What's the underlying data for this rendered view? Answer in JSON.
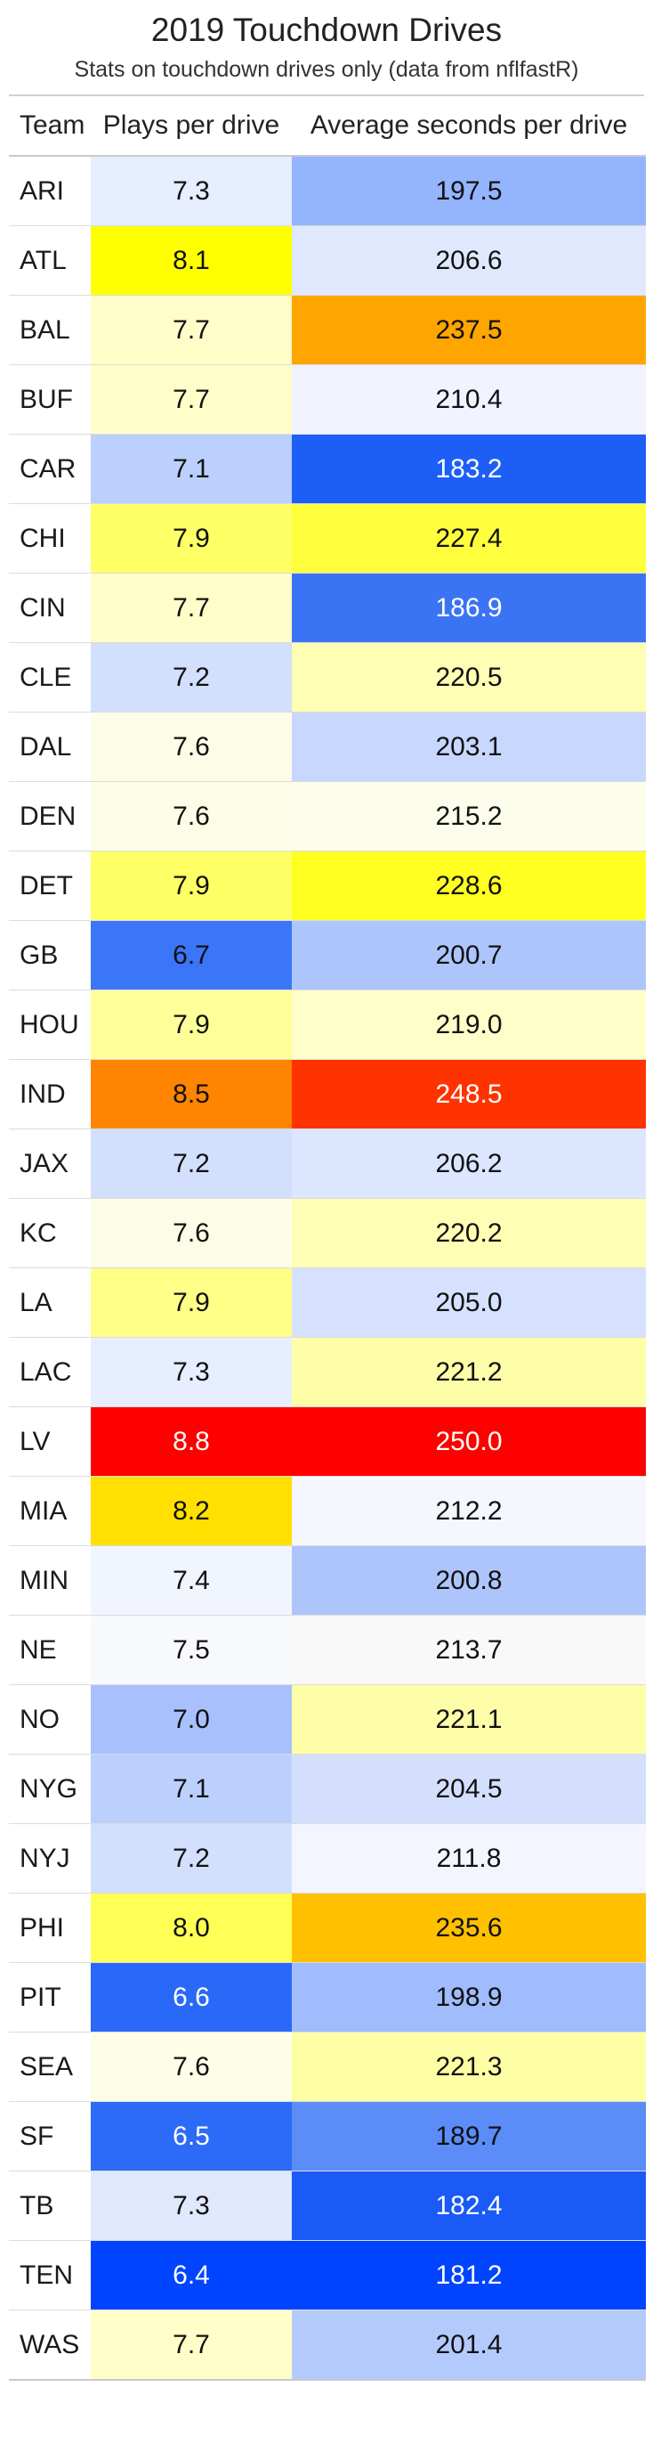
{
  "title": "2019 Touchdown Drives",
  "subtitle": "Stats on touchdown drives only (data from nflfastR)",
  "chart_data": {
    "type": "table",
    "columns": [
      "Team",
      "Plays per drive",
      "Average seconds per drive"
    ],
    "rows": [
      {
        "team": "ARI",
        "plays": "7.3",
        "secs": "197.5",
        "plays_bg": "#e6eeff",
        "plays_fg": "#111111",
        "secs_bg": "#94b4fd",
        "secs_fg": "#111111"
      },
      {
        "team": "ATL",
        "plays": "8.1",
        "secs": "206.6",
        "plays_bg": "#ffff00",
        "plays_fg": "#111111",
        "secs_bg": "#e0e8fe",
        "secs_fg": "#111111"
      },
      {
        "team": "BAL",
        "plays": "7.7",
        "secs": "237.5",
        "plays_bg": "#fffec8",
        "plays_fg": "#111111",
        "secs_bg": "#ffa500",
        "secs_fg": "#111111"
      },
      {
        "team": "BUF",
        "plays": "7.7",
        "secs": "210.4",
        "plays_bg": "#fffec8",
        "plays_fg": "#111111",
        "secs_bg": "#f1f4fe",
        "secs_fg": "#111111"
      },
      {
        "team": "CAR",
        "plays": "7.1",
        "secs": "183.2",
        "plays_bg": "#bcd0fd",
        "plays_fg": "#111111",
        "secs_bg": "#1d5ff6",
        "secs_fg": "#ffffff"
      },
      {
        "team": "CHI",
        "plays": "7.9",
        "secs": "227.4",
        "plays_bg": "#ffff66",
        "plays_fg": "#111111",
        "secs_bg": "#fefe3c",
        "secs_fg": "#111111"
      },
      {
        "team": "CIN",
        "plays": "7.7",
        "secs": "186.9",
        "plays_bg": "#fffec8",
        "plays_fg": "#111111",
        "secs_bg": "#3a74f5",
        "secs_fg": "#ffffff"
      },
      {
        "team": "CLE",
        "plays": "7.2",
        "secs": "220.5",
        "plays_bg": "#d2dffd",
        "plays_fg": "#111111",
        "secs_bg": "#fefeb4",
        "secs_fg": "#111111"
      },
      {
        "team": "DAL",
        "plays": "7.6",
        "secs": "203.1",
        "plays_bg": "#fdfde7",
        "plays_fg": "#111111",
        "secs_bg": "#c8d7fd",
        "secs_fg": "#111111"
      },
      {
        "team": "DEN",
        "plays": "7.6",
        "secs": "215.2",
        "plays_bg": "#fdfde7",
        "plays_fg": "#111111",
        "secs_bg": "#fdfdeb",
        "secs_fg": "#111111"
      },
      {
        "team": "DET",
        "plays": "7.9",
        "secs": "228.6",
        "plays_bg": "#ffff66",
        "plays_fg": "#111111",
        "secs_bg": "#ffff22",
        "secs_fg": "#111111"
      },
      {
        "team": "GB",
        "plays": "6.7",
        "secs": "200.7",
        "plays_bg": "#3a76f7",
        "plays_fg": "#111111",
        "secs_bg": "#aec5fc",
        "secs_fg": "#111111"
      },
      {
        "team": "HOU",
        "plays": "7.9",
        "secs": "219.0",
        "plays_bg": "#ffff99",
        "plays_fg": "#111111",
        "secs_bg": "#fefec8",
        "secs_fg": "#111111"
      },
      {
        "team": "IND",
        "plays": "8.5",
        "secs": "248.5",
        "plays_bg": "#ff8500",
        "plays_fg": "#111111",
        "secs_bg": "#ff3300",
        "secs_fg": "#ffffff"
      },
      {
        "team": "JAX",
        "plays": "7.2",
        "secs": "206.2",
        "plays_bg": "#d2dffd",
        "plays_fg": "#111111",
        "secs_bg": "#dce6fe",
        "secs_fg": "#111111"
      },
      {
        "team": "KC",
        "plays": "7.6",
        "secs": "220.2",
        "plays_bg": "#fdfde7",
        "plays_fg": "#111111",
        "secs_bg": "#fefeb4",
        "secs_fg": "#111111"
      },
      {
        "team": "LA",
        "plays": "7.9",
        "secs": "205.0",
        "plays_bg": "#ffff88",
        "plays_fg": "#111111",
        "secs_bg": "#d5e1fe",
        "secs_fg": "#111111"
      },
      {
        "team": "LAC",
        "plays": "7.3",
        "secs": "221.2",
        "plays_bg": "#e6eeff",
        "plays_fg": "#111111",
        "secs_bg": "#fefea8",
        "secs_fg": "#111111"
      },
      {
        "team": "LV",
        "plays": "8.8",
        "secs": "250.0",
        "plays_bg": "#ff0000",
        "plays_fg": "#ffffff",
        "secs_bg": "#ff0000",
        "secs_fg": "#ffffff"
      },
      {
        "team": "MIA",
        "plays": "8.2",
        "secs": "212.2",
        "plays_bg": "#ffe000",
        "plays_fg": "#111111",
        "secs_bg": "#f5f7fe",
        "secs_fg": "#111111"
      },
      {
        "team": "MIN",
        "plays": "7.4",
        "secs": "200.8",
        "plays_bg": "#f1f5fe",
        "plays_fg": "#111111",
        "secs_bg": "#aec5fc",
        "secs_fg": "#111111"
      },
      {
        "team": "NE",
        "plays": "7.5",
        "secs": "213.7",
        "plays_bg": "#f8f9fc",
        "plays_fg": "#111111",
        "secs_bg": "#f8f9f8",
        "secs_fg": "#111111"
      },
      {
        "team": "NO",
        "plays": "7.0",
        "secs": "221.1",
        "plays_bg": "#a8c1fc",
        "plays_fg": "#111111",
        "secs_bg": "#fefea8",
        "secs_fg": "#111111"
      },
      {
        "team": "NYG",
        "plays": "7.1",
        "secs": "204.5",
        "plays_bg": "#bcd0fd",
        "plays_fg": "#111111",
        "secs_bg": "#d3dffd",
        "secs_fg": "#111111"
      },
      {
        "team": "NYJ",
        "plays": "7.2",
        "secs": "211.8",
        "plays_bg": "#d2dffd",
        "plays_fg": "#111111",
        "secs_bg": "#f3f6fe",
        "secs_fg": "#111111"
      },
      {
        "team": "PHI",
        "plays": "8.0",
        "secs": "235.6",
        "plays_bg": "#ffff55",
        "plays_fg": "#111111",
        "secs_bg": "#ffc000",
        "secs_fg": "#111111"
      },
      {
        "team": "PIT",
        "plays": "6.6",
        "secs": "198.9",
        "plays_bg": "#2a68f7",
        "plays_fg": "#ffffff",
        "secs_bg": "#a0bcfc",
        "secs_fg": "#111111"
      },
      {
        "team": "SEA",
        "plays": "7.6",
        "secs": "221.3",
        "plays_bg": "#fefee8",
        "plays_fg": "#111111",
        "secs_bg": "#fefea4",
        "secs_fg": "#111111"
      },
      {
        "team": "SF",
        "plays": "6.5",
        "secs": "189.7",
        "plays_bg": "#2c6bf7",
        "plays_fg": "#ffffff",
        "secs_bg": "#5b8cf8",
        "secs_fg": "#111111"
      },
      {
        "team": "TB",
        "plays": "7.3",
        "secs": "182.4",
        "plays_bg": "#e0e8fe",
        "plays_fg": "#111111",
        "secs_bg": "#1a5af6",
        "secs_fg": "#ffffff"
      },
      {
        "team": "TEN",
        "plays": "6.4",
        "secs": "181.2",
        "plays_bg": "#0044ff",
        "plays_fg": "#ffffff",
        "secs_bg": "#0044ff",
        "secs_fg": "#ffffff"
      },
      {
        "team": "WAS",
        "plays": "7.7",
        "secs": "201.4",
        "plays_bg": "#fffec8",
        "plays_fg": "#111111",
        "secs_bg": "#b5cafc",
        "secs_fg": "#111111"
      }
    ]
  }
}
